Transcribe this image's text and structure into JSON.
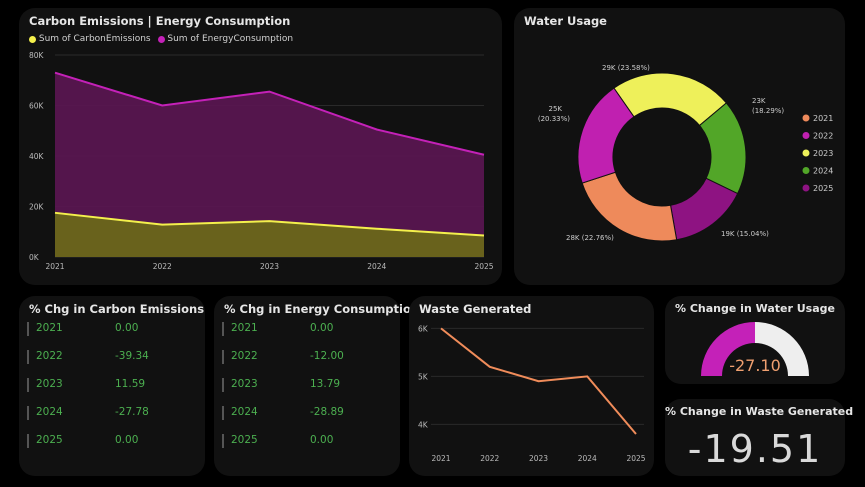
{
  "colors": {
    "carbon": "#f4f04c",
    "energy": "#c421b8",
    "energy_fill": "#581650",
    "carbon_fill": "#6a6619",
    "waste_line": "#f08c5a",
    "positive_text": "#4caf50",
    "gauge_fill": "#c421b8",
    "gauge_track": "#eeeeee",
    "gauge_value": "#f0a070"
  },
  "area_card": {
    "title": "Carbon Emissions | Energy Consumption",
    "legend": [
      "Sum of CarbonEmissions",
      "Sum of EnergyConsumption"
    ]
  },
  "water_card": {
    "title": "Water Usage"
  },
  "carbon_chg_card": {
    "title": "% Chg in Carbon Emissions",
    "rows": [
      {
        "year": "2021",
        "value": "0.00"
      },
      {
        "year": "2022",
        "value": "-39.34"
      },
      {
        "year": "2023",
        "value": "11.59"
      },
      {
        "year": "2024",
        "value": "-27.78"
      },
      {
        "year": "2025",
        "value": "0.00"
      }
    ]
  },
  "energy_chg_card": {
    "title": "% Chg in Energy Consumption",
    "rows": [
      {
        "year": "2021",
        "value": "0.00"
      },
      {
        "year": "2022",
        "value": "-12.00"
      },
      {
        "year": "2023",
        "value": "13.79"
      },
      {
        "year": "2024",
        "value": "-28.89"
      },
      {
        "year": "2025",
        "value": "0.00"
      }
    ]
  },
  "waste_card": {
    "title": "Waste Generated"
  },
  "water_kpi": {
    "title": "% Change in Water Usage",
    "value": "-27.10",
    "gauge_fraction": 0.5
  },
  "waste_kpi": {
    "title": "% Change in Waste Generated",
    "value": "-19.51"
  },
  "chart_data": [
    {
      "type": "area",
      "title": "Carbon Emissions | Energy Consumption",
      "categories": [
        "2021",
        "2022",
        "2023",
        "2024",
        "2025"
      ],
      "series": [
        {
          "name": "Sum of EnergyConsumption",
          "values": [
            73000,
            60000,
            65500,
            50500,
            40500
          ]
        },
        {
          "name": "Sum of CarbonEmissions",
          "values": [
            17500,
            12800,
            14200,
            11200,
            8500
          ]
        }
      ],
      "ylim": [
        0,
        80000
      ],
      "yticks": [
        0,
        20000,
        40000,
        60000,
        80000
      ],
      "ytick_labels": [
        "0K",
        "20K",
        "40K",
        "60K",
        "80K"
      ]
    },
    {
      "type": "pie",
      "title": "Water Usage",
      "slices": [
        {
          "label": "2021",
          "value": 28,
          "percent": 22.76,
          "display": "28K (22.76%)",
          "color": "#ee8a5b"
        },
        {
          "label": "2022",
          "value": 25,
          "percent": 20.33,
          "display": "25K (20.33%)",
          "color": "#c020b0"
        },
        {
          "label": "2023",
          "value": 29,
          "percent": 23.58,
          "display": "29K (23.58%)",
          "color": "#eef05a"
        },
        {
          "label": "2024",
          "value": 23,
          "percent": 18.29,
          "display": "23K (18.29%)",
          "color": "#52a628"
        },
        {
          "label": "2025",
          "value": 19,
          "percent": 15.04,
          "display": "19K (15.04%)",
          "color": "#8e1382"
        }
      ],
      "legend": [
        "2021",
        "2022",
        "2023",
        "2024",
        "2025"
      ]
    },
    {
      "type": "line",
      "title": "Waste Generated",
      "categories": [
        "2021",
        "2022",
        "2023",
        "2024",
        "2025"
      ],
      "values": [
        6000,
        5200,
        4900,
        5000,
        3800
      ],
      "ylim": [
        3800,
        6050
      ],
      "yticks": [
        4000,
        5000,
        6000
      ],
      "ytick_labels": [
        "4K",
        "5K",
        "6K"
      ]
    }
  ]
}
